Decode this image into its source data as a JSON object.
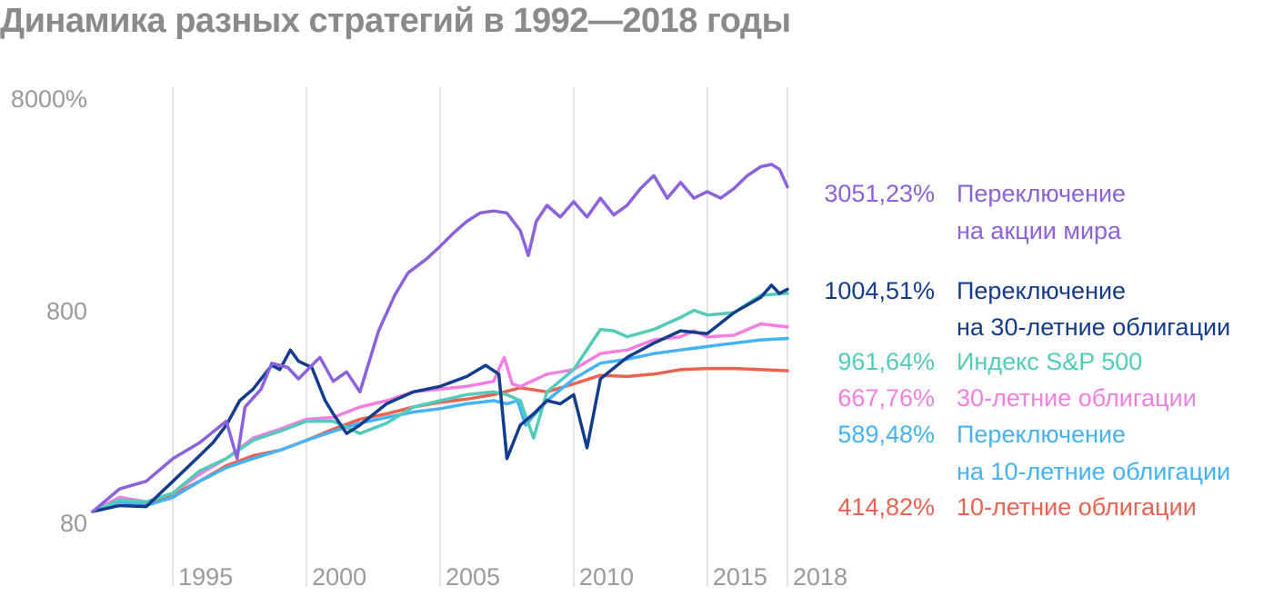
{
  "title": "Динамика разных стратегий в 1992—2018 годы",
  "chart_data": {
    "type": "line",
    "title": "Динамика разных стратегий в 1992—2018 годы",
    "y_scale": "log",
    "ylim": [
      80,
      8000
    ],
    "y_ticks": [
      {
        "value": 8000,
        "label": "8000%"
      },
      {
        "value": 800,
        "label": "800"
      },
      {
        "value": 80,
        "label": "80"
      }
    ],
    "xlim": [
      1992,
      2018
    ],
    "x_ticks": [
      {
        "value": 1995,
        "label": "1995"
      },
      {
        "value": 2000,
        "label": "2000"
      },
      {
        "value": 2005,
        "label": "2005"
      },
      {
        "value": 2010,
        "label": "2010"
      },
      {
        "value": 2015,
        "label": "2015"
      },
      {
        "value": 2018,
        "label": "2018"
      }
    ],
    "grid": "vertical",
    "legend_position": "right",
    "series": [
      {
        "name": "Переключение на акции мира",
        "label_lines": [
          "Переключение",
          "на акции мира"
        ],
        "final_value": "3051,23%",
        "color": "#8b61dd",
        "x": [
          1992,
          1993,
          1994,
          1995,
          1996,
          1997,
          1997.4,
          1997.7,
          1998.3,
          1998.7,
          1999.3,
          1999.7,
          2000.5,
          2001,
          2001.5,
          2002,
          2002.7,
          2003.3,
          2003.8,
          2004.5,
          2005,
          2005.5,
          2006,
          2006.5,
          2007,
          2007.5,
          2008,
          2008.3,
          2008.6,
          2009,
          2009.5,
          2010,
          2010.5,
          2011,
          2011.5,
          2012,
          2012.5,
          2013,
          2013.5,
          2014,
          2014.5,
          2015,
          2015.5,
          2016,
          2016.5,
          2017,
          2017.4,
          2017.7,
          2018
        ],
        "values": [
          90,
          115,
          125,
          160,
          190,
          240,
          160,
          280,
          340,
          450,
          430,
          380,
          480,
          370,
          410,
          330,
          640,
          940,
          1200,
          1400,
          1600,
          1850,
          2100,
          2300,
          2350,
          2300,
          1900,
          1450,
          2100,
          2500,
          2200,
          2600,
          2200,
          2700,
          2250,
          2500,
          3000,
          3450,
          2700,
          3200,
          2700,
          2900,
          2700,
          3000,
          3450,
          3800,
          3900,
          3700,
          3051.23
        ]
      },
      {
        "name": "Переключение на 30-летние облигации",
        "label_lines": [
          "Переключение",
          "на 30-летние облигации"
        ],
        "final_value": "1004,51%",
        "color": "#133d8c",
        "x": [
          1992,
          1993,
          1994,
          1995,
          1996,
          1996.5,
          1997,
          1997.5,
          1998,
          1998.7,
          1999,
          1999.4,
          1999.7,
          2000.2,
          2000.7,
          2001,
          2001.5,
          2002,
          2003,
          2004,
          2005,
          2006,
          2006.7,
          2007.2,
          2007.5,
          2008,
          2008.5,
          2009,
          2009.5,
          2010,
          2010.5,
          2011,
          2012,
          2013,
          2014,
          2015,
          2016,
          2017,
          2017.4,
          2017.7,
          2018
        ],
        "values": [
          90,
          96,
          95,
          125,
          165,
          190,
          230,
          300,
          340,
          440,
          420,
          520,
          460,
          430,
          300,
          260,
          210,
          230,
          290,
          330,
          350,
          390,
          440,
          400,
          160,
          230,
          260,
          300,
          290,
          320,
          180,
          380,
          480,
          560,
          640,
          620,
          780,
          920,
          1050,
          960,
          1004.51
        ]
      },
      {
        "name": "Индекс S&P 500",
        "label_lines": [
          "Индекс S&P 500"
        ],
        "final_value": "961,64%",
        "color": "#52cbb8",
        "x": [
          1992,
          1993,
          1994,
          1995,
          1996,
          1997,
          1998,
          1999,
          2000,
          2001,
          2002,
          2003,
          2004,
          2005,
          2006,
          2007,
          2007.5,
          2008,
          2008.5,
          2009,
          2010,
          2011,
          2011.5,
          2012,
          2013,
          2014,
          2014.5,
          2015,
          2016,
          2017,
          2018
        ],
        "values": [
          90,
          102,
          100,
          110,
          140,
          160,
          195,
          215,
          240,
          240,
          210,
          235,
          280,
          300,
          320,
          330,
          320,
          300,
          200,
          330,
          420,
          650,
          640,
          600,
          650,
          740,
          800,
          760,
          780,
          940,
          961.64
        ]
      },
      {
        "name": "30-летние облигации",
        "label_lines": [
          "30-летние облигации"
        ],
        "final_value": "667,76%",
        "color": "#f27fe0",
        "x": [
          1992,
          1993,
          1994,
          1995,
          1996,
          1997,
          1998,
          1999,
          2000,
          2001,
          2002,
          2003,
          2004,
          2005,
          2006,
          2007,
          2007.4,
          2007.7,
          2008,
          2009,
          2010,
          2011,
          2012,
          2013,
          2014,
          2014.5,
          2015,
          2016,
          2017,
          2018
        ],
        "values": [
          90,
          105,
          100,
          110,
          135,
          160,
          200,
          220,
          245,
          250,
          280,
          300,
          330,
          340,
          350,
          370,
          480,
          360,
          350,
          400,
          420,
          500,
          520,
          580,
          600,
          640,
          600,
          610,
          690,
          667.76
        ]
      },
      {
        "name": "Переключение на 10-летние облигации",
        "label_lines": [
          "Переключение",
          "на 10-летние облигации"
        ],
        "final_value": "589,48%",
        "color": "#45b2f5",
        "x": [
          1992,
          1993,
          1994,
          1995,
          1996,
          1997,
          1998,
          1999,
          2000,
          2001,
          2002,
          2003,
          2004,
          2005,
          2006,
          2007,
          2007.5,
          2007.9,
          2008.2,
          2009,
          2010,
          2011,
          2012,
          2013,
          2014,
          2015,
          2016,
          2017,
          2018
        ],
        "values": [
          90,
          100,
          96,
          105,
          125,
          145,
          160,
          175,
          195,
          215,
          235,
          250,
          265,
          275,
          290,
          300,
          290,
          300,
          230,
          300,
          380,
          450,
          470,
          500,
          520,
          540,
          560,
          580,
          589.48
        ]
      },
      {
        "name": "10-летние облигации",
        "label_lines": [
          "10-летние облигации"
        ],
        "final_value": "414,82%",
        "color": "#ec6150",
        "x": [
          1992,
          1993,
          1994,
          1995,
          1996,
          1997,
          1998,
          1999,
          2000,
          2001,
          2002,
          2003,
          2004,
          2005,
          2006,
          2007,
          2008,
          2009,
          2010,
          2011,
          2012,
          2013,
          2014,
          2015,
          2016,
          2017,
          2018
        ],
        "values": [
          90,
          100,
          98,
          108,
          125,
          148,
          165,
          175,
          195,
          220,
          245,
          260,
          280,
          295,
          305,
          320,
          345,
          330,
          360,
          395,
          390,
          400,
          420,
          425,
          425,
          420,
          414.82
        ]
      }
    ]
  }
}
